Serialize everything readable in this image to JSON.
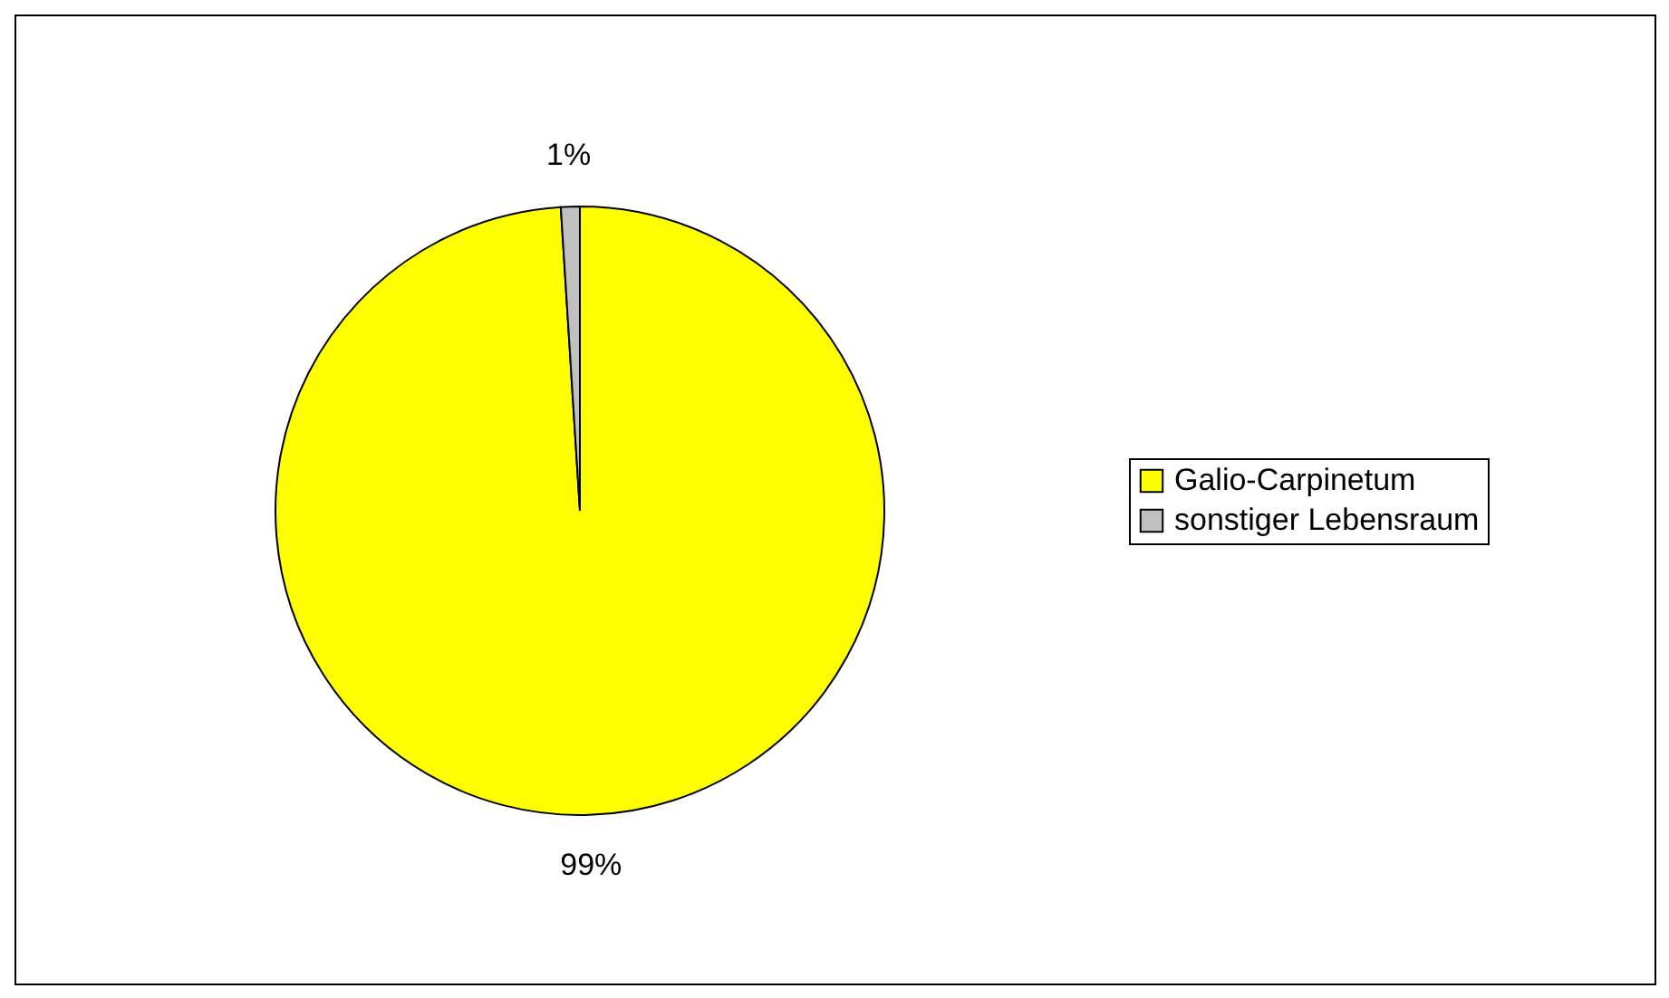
{
  "chart_data": {
    "type": "pie",
    "categories": [
      "Galio-Carpinetum",
      "sonstiger Lebensraum"
    ],
    "values": [
      99,
      1
    ],
    "colors": [
      "#ffff00",
      "#c0c0c0"
    ],
    "value_labels": [
      "99%",
      "1%"
    ],
    "legend": "right"
  }
}
